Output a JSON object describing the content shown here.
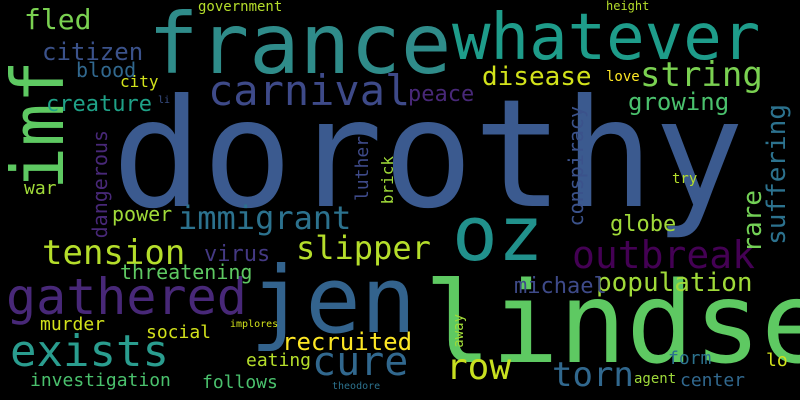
{
  "words": {
    "dorothy": "dorothy",
    "france": "france",
    "whatever": "whatever",
    "imf": "imf",
    "jen": "jen",
    "lindsey": "lindsey",
    "oz": "oz",
    "gathered": "gathered",
    "exists": "exists",
    "carnival": "carnival",
    "immigrant": "immigrant",
    "slipper": "slipper",
    "tension": "tension",
    "outbreak": "outbreak",
    "population": "population",
    "string": "string",
    "disease": "disease",
    "growing": "growing",
    "peace": "peace",
    "cure": "cure",
    "row": "row",
    "torn": "torn",
    "recruited": "recruited",
    "suffering": "suffering",
    "rare": "rare",
    "conspiracy": "conspiracy",
    "globe": "globe",
    "michael": "michael",
    "threatening": "threatening",
    "virus": "virus",
    "power": "power",
    "creature": "creature",
    "citizen": "citizen",
    "blood": "blood",
    "fled": "fled",
    "city": "city",
    "war": "war",
    "dangerous": "dangerous",
    "luther": "luther",
    "brick": "brick",
    "murder": "murder",
    "social": "social",
    "eating": "eating",
    "follows": "follows",
    "investigation": "investigation",
    "center": "center",
    "agent": "agent",
    "form": "form",
    "lo": "lo",
    "try": "try",
    "love": "love",
    "government": "government",
    "height": "height",
    "away": "away",
    "implores": "implores",
    "theodore": "theodore",
    "li": "li"
  }
}
